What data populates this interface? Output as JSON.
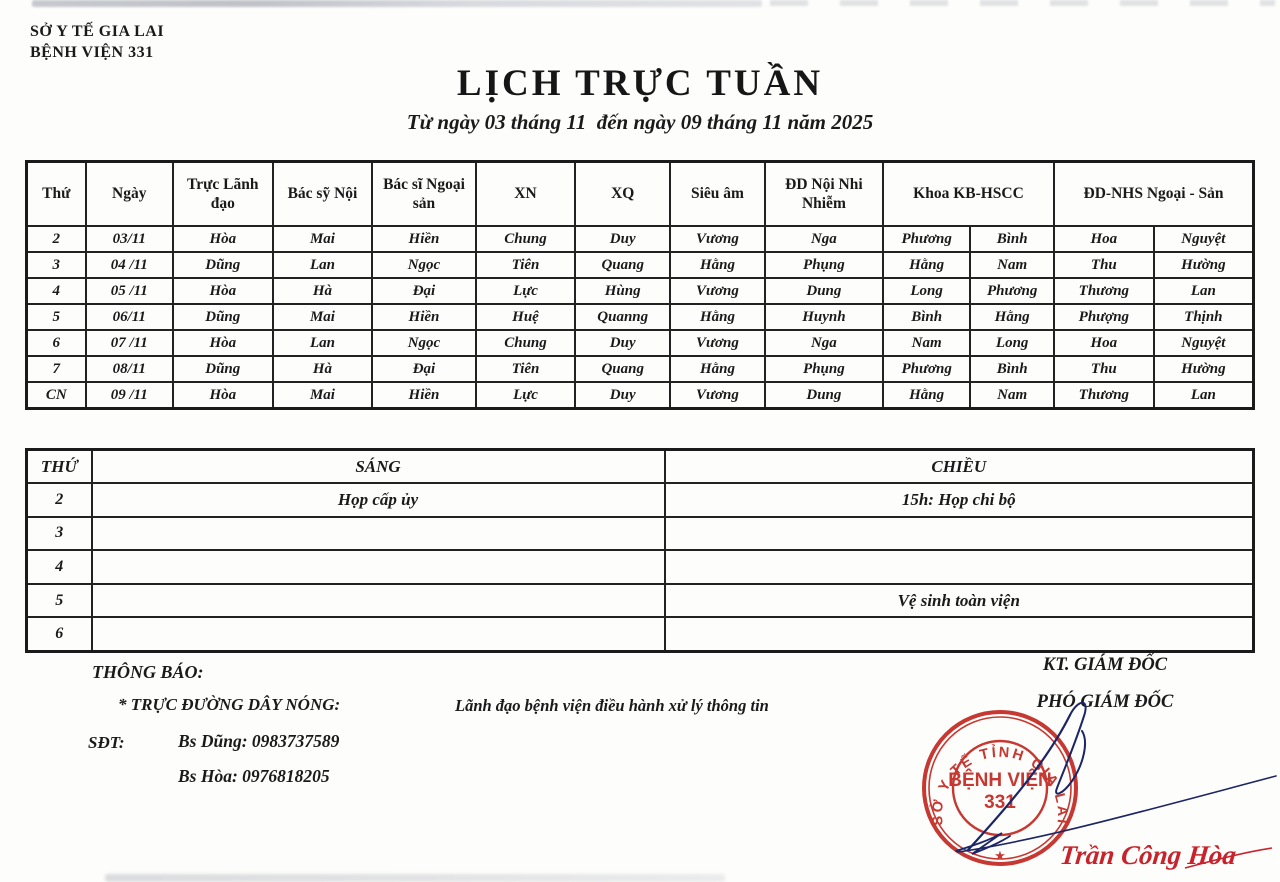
{
  "header": {
    "org_line1": "SỞ Y TẾ GIA LAI",
    "org_line2": "BỆNH VIỆN 331",
    "title": "LỊCH TRỰC TUẦN",
    "subtitle": "Từ ngày 03 tháng 11  đến ngày 09 tháng 11 năm 2025"
  },
  "duty_table": {
    "headers": [
      {
        "label": "Thứ",
        "span": 1
      },
      {
        "label": "Ngày",
        "span": 1
      },
      {
        "label": "Trực Lãnh đạo",
        "span": 1
      },
      {
        "label": "Bác sỹ Nội",
        "span": 1
      },
      {
        "label": "Bác sĩ Ngoại sản",
        "span": 1
      },
      {
        "label": "XN",
        "span": 1
      },
      {
        "label": "XQ",
        "span": 1
      },
      {
        "label": "Siêu âm",
        "span": 1
      },
      {
        "label": "ĐD Nội Nhi Nhiễm",
        "span": 1
      },
      {
        "label": "Khoa KB-HSCC",
        "span": 2
      },
      {
        "label": "ĐD-NHS Ngoại - Sản",
        "span": 2
      }
    ],
    "col_widths_pct": [
      4.8,
      7.1,
      8.1,
      8.1,
      8.4,
      8.1,
      7.7,
      7.7,
      9.6,
      7.1,
      6.8,
      8.1,
      8.1
    ],
    "rows": [
      [
        "2",
        "03/11",
        "Hòa",
        "Mai",
        "Hiền",
        "Chung",
        "Duy",
        "Vương",
        "Nga",
        "Phương",
        "Bình",
        "Hoa",
        "Nguyệt"
      ],
      [
        "3",
        "04 /11",
        "Dũng",
        "Lan",
        "Ngọc",
        "Tiên",
        "Quang",
        "Hằng",
        "Phụng",
        "Hằng",
        "Nam",
        "Thu",
        "Hường"
      ],
      [
        "4",
        "05 /11",
        "Hòa",
        "Hà",
        "Đại",
        "Lực",
        "Hùng",
        "Vương",
        "Dung",
        "Long",
        "Phương",
        "Thương",
        "Lan"
      ],
      [
        "5",
        "06/11",
        "Dũng",
        "Mai",
        "Hiền",
        "Huệ",
        "Quanng",
        "Hằng",
        "Huynh",
        "Bình",
        "Hằng",
        "Phượng",
        "Thịnh"
      ],
      [
        "6",
        "07 /11",
        "Hòa",
        "Lan",
        "Ngọc",
        "Chung",
        "Duy",
        "Vương",
        "Nga",
        "Nam",
        "Long",
        "Hoa",
        "Nguyệt"
      ],
      [
        "7",
        "08/11",
        "Dũng",
        "Hà",
        "Đại",
        "Tiên",
        "Quang",
        "Hằng",
        "Phụng",
        "Phương",
        "Bình",
        "Thu",
        "Hường"
      ],
      [
        "CN",
        "09 /11",
        "Hòa",
        "Mai",
        "Hiền",
        "Lực",
        "Duy",
        "Vương",
        "Dung",
        "Hằng",
        "Nam",
        "Thương",
        "Lan"
      ]
    ]
  },
  "meeting_table": {
    "headers": [
      "THỨ",
      "SÁNG",
      "CHIỀU"
    ],
    "rows": [
      [
        "2",
        "Họp cấp ủy",
        "15h: Họp chi bộ"
      ],
      [
        "3",
        "",
        ""
      ],
      [
        "4",
        "",
        ""
      ],
      [
        "5",
        "",
        "Vệ sinh toàn viện"
      ],
      [
        "6",
        "",
        ""
      ]
    ]
  },
  "footer": {
    "notice_label": "THÔNG BÁO:",
    "hotline_label": "* TRỰC ĐƯỜNG DÂY NÓNG:",
    "center_note": "Lãnh đạo bệnh viện điều hành xử lý thông tin",
    "kt_giam_doc": "KT. GIÁM ĐỐC",
    "pho_giam_doc": "PHÓ GIÁM ĐỐC",
    "sdt_label": "SĐT:",
    "phone1": "Bs Dũng: 0983737589",
    "phone2": "Bs Hòa: 0976818205",
    "signature_name": "Trần Công Hòa"
  },
  "stamp": {
    "ring_text": "SỞ  Y  TẾ   TỈNH   GIA  LAI",
    "center_line1": "BỆNH VIỆN",
    "center_line2": "331",
    "star": "★"
  },
  "colors": {
    "stamp_red": "#c63831",
    "script_red": "#c8232c",
    "signature_ink": "#1c2566",
    "text": "#1a1a1a"
  }
}
